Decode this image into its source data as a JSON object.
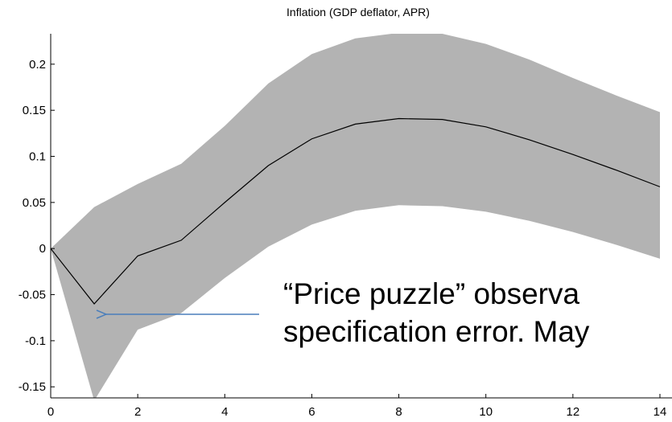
{
  "chart_data": {
    "type": "line",
    "title": "Inflation (GDP deflator, APR)",
    "x": [
      0,
      1,
      2,
      3,
      4,
      5,
      6,
      7,
      8,
      9,
      10,
      11,
      12,
      13,
      14
    ],
    "band": {
      "color": "#b3b3b3",
      "upper": [
        0,
        0.045,
        0.07,
        0.092,
        0.133,
        0.179,
        0.211,
        0.228,
        0.234,
        0.233,
        0.222,
        0.205,
        0.185,
        0.166,
        0.148
      ],
      "lower": [
        0,
        -0.165,
        -0.088,
        -0.07,
        -0.032,
        0.002,
        0.026,
        0.041,
        0.047,
        0.046,
        0.04,
        0.03,
        0.018,
        0.004,
        -0.011
      ]
    },
    "series": [
      {
        "color": "#000000",
        "values": [
          0,
          -0.06,
          -0.008,
          0.009,
          0.05,
          0.09,
          0.119,
          0.135,
          0.141,
          0.14,
          0.132,
          0.118,
          0.102,
          0.085,
          0.067
        ]
      }
    ],
    "xlim": [
      0,
      14
    ],
    "xticks": [
      0,
      2,
      4,
      6,
      8,
      10,
      12,
      14
    ],
    "ylim": [
      -0.162,
      0.233
    ],
    "yticks": [
      -0.15,
      -0.1,
      -0.05,
      0,
      0.05,
      0.1,
      0.15,
      0.2
    ],
    "annotations": [
      "“Price puzzle” observa",
      "specification error. May"
    ],
    "arrow_color": "#4a7ebb"
  }
}
